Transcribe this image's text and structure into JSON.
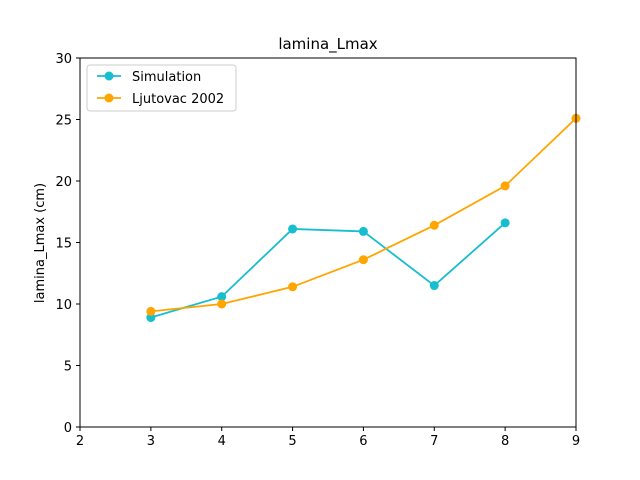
{
  "chart_data": {
    "type": "line",
    "title": "lamina_Lmax",
    "xlabel": "",
    "ylabel": "lamina_Lmax (cm)",
    "xlim": [
      2,
      9
    ],
    "ylim": [
      0,
      30
    ],
    "xticks": [
      2,
      3,
      4,
      5,
      6,
      7,
      8,
      9
    ],
    "yticks": [
      0,
      5,
      10,
      15,
      20,
      25,
      30
    ],
    "grid": false,
    "legend": "top-left",
    "series": [
      {
        "name": "Simulation",
        "color": "#17becf",
        "x": [
          3,
          4,
          5,
          6,
          7,
          8
        ],
        "y": [
          8.9,
          10.6,
          16.1,
          15.9,
          11.5,
          16.6
        ]
      },
      {
        "name": "Ljutovac 2002",
        "color": "#ffa500",
        "x": [
          3,
          4,
          5,
          6,
          7,
          8,
          9
        ],
        "y": [
          9.4,
          10.0,
          11.4,
          13.6,
          16.4,
          19.6,
          25.1
        ]
      }
    ]
  }
}
